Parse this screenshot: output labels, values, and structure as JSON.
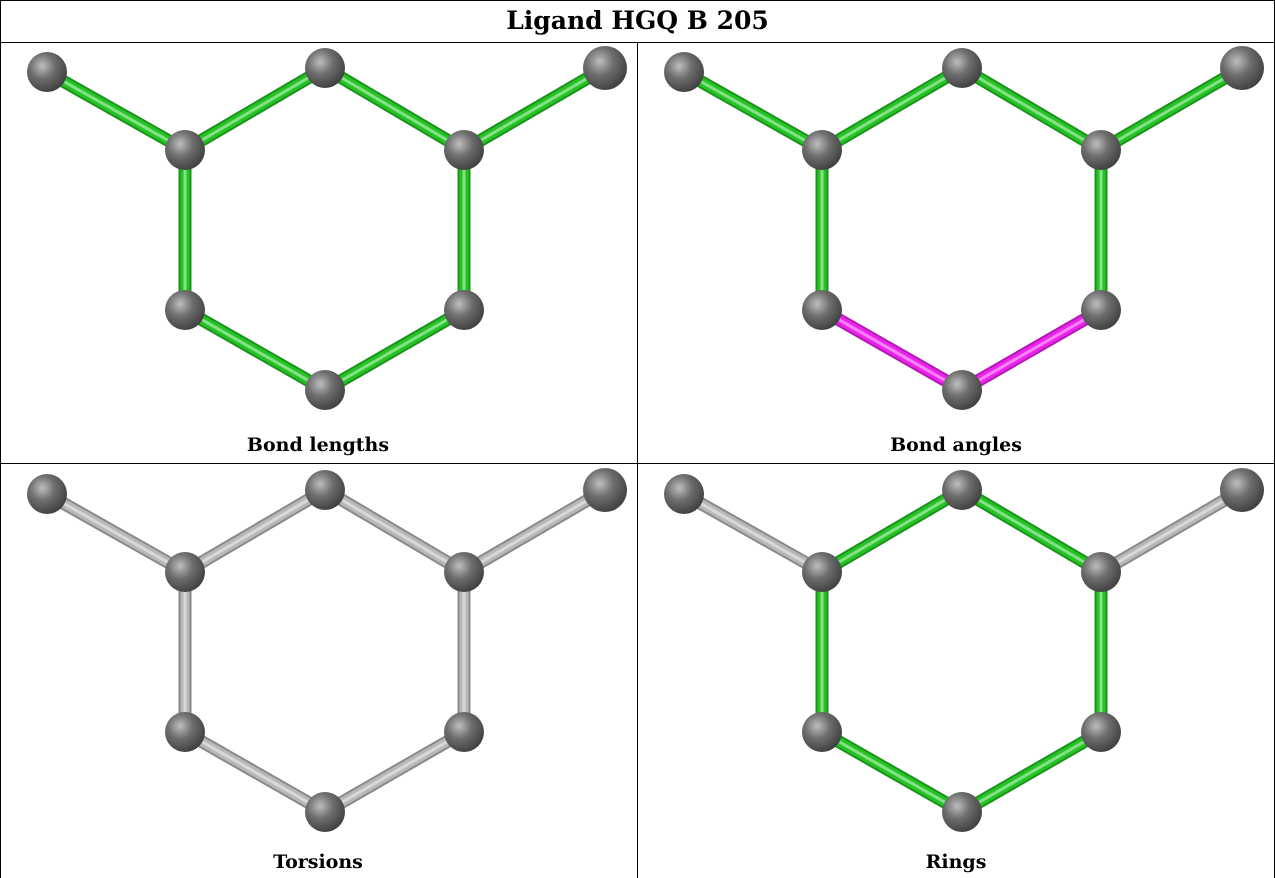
{
  "title": "Ligand HGQ B 205",
  "colors": {
    "atom": "#6e6e6e",
    "normal_bond": "#25c425",
    "outlier_bond": "#ee22ee",
    "neutral_bond": "#b8b8b8"
  },
  "panels": [
    {
      "id": "bond-lengths",
      "caption": "Bond lengths",
      "bond_colors": [
        "normal_bond",
        "normal_bond",
        "normal_bond",
        "normal_bond",
        "normal_bond",
        "normal_bond",
        "normal_bond",
        "normal_bond"
      ]
    },
    {
      "id": "bond-angles",
      "caption": "Bond angles",
      "bond_colors": [
        "normal_bond",
        "normal_bond",
        "normal_bond",
        "normal_bond",
        "normal_bond",
        "outlier_bond",
        "outlier_bond",
        "normal_bond"
      ]
    },
    {
      "id": "torsions",
      "caption": "Torsions",
      "bond_colors": [
        "neutral_bond",
        "neutral_bond",
        "neutral_bond",
        "neutral_bond",
        "neutral_bond",
        "neutral_bond",
        "neutral_bond",
        "neutral_bond"
      ]
    },
    {
      "id": "rings",
      "caption": "Rings",
      "bond_colors": [
        "neutral_bond",
        "normal_bond",
        "normal_bond",
        "neutral_bond",
        "normal_bond",
        "normal_bond",
        "normal_bond",
        "normal_bond"
      ]
    }
  ]
}
